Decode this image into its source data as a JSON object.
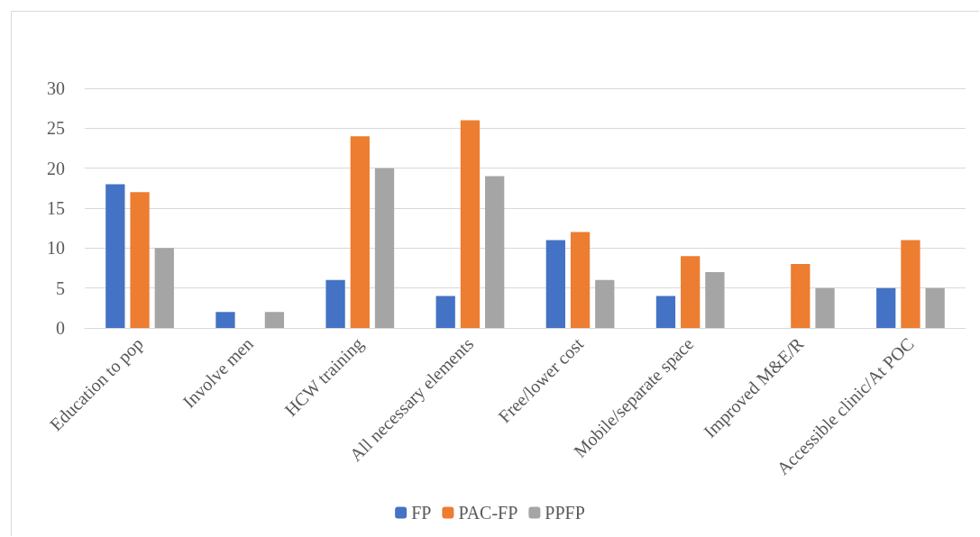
{
  "chart_data": {
    "type": "bar",
    "categories": [
      "Education to pop",
      "Involve men",
      "HCW training",
      "All necessary elements",
      "Free/lower cost",
      "Mobile/separate space",
      "Improved M&E/R",
      "Accessible clinic/At POC"
    ],
    "series": [
      {
        "name": "FP",
        "color": "#4472c4",
        "values": [
          18,
          2,
          6,
          4,
          11,
          4,
          0,
          5
        ]
      },
      {
        "name": "PAC-FP",
        "color": "#ed7d31",
        "values": [
          17,
          0,
          24,
          26,
          12,
          9,
          8,
          11
        ]
      },
      {
        "name": "PPFP",
        "color": "#a5a5a5",
        "values": [
          10,
          2,
          20,
          19,
          6,
          7,
          5,
          5
        ]
      }
    ],
    "ylim": [
      0,
      30
    ],
    "yticks": [
      0,
      5,
      10,
      15,
      20,
      25,
      30
    ],
    "grid": "y",
    "legend": "bottom"
  }
}
